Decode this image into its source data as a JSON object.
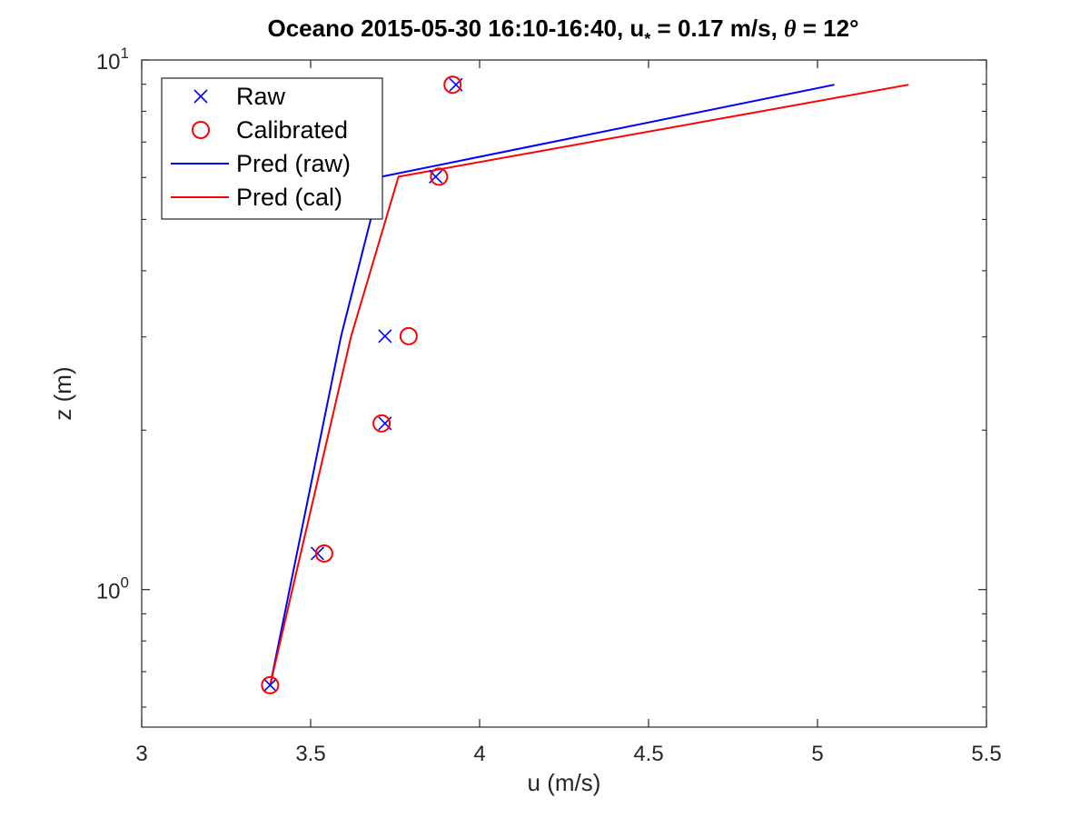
{
  "chart_data": {
    "type": "line",
    "title": {
      "main": "Oceano 2015-05-30 16:10-16:40, u",
      "ustar_sub": "*",
      "middle": " = 0.17 m/s, ",
      "theta_symbol": "θ",
      "end": " = 12°"
    },
    "xlabel": "u (m/s)",
    "ylabel": "z (m)",
    "xlim": [
      3,
      5.5
    ],
    "ylim": [
      0.55,
      10
    ],
    "yscale": "log",
    "xticks": [
      3,
      3.5,
      4,
      4.5,
      5,
      5.5
    ],
    "xtick_labels": [
      "3",
      "3.5",
      "4",
      "4.5",
      "5",
      "5.5"
    ],
    "yticks": [
      {
        "value": 1,
        "base": "10",
        "exp": "0"
      },
      {
        "value": 10,
        "base": "10",
        "exp": "1"
      }
    ],
    "minor_yticks": [
      0.6,
      0.7,
      0.8,
      0.9,
      2,
      3,
      4,
      5,
      6,
      7,
      8,
      9
    ],
    "legend_position": "top-left",
    "series": [
      {
        "name": "Raw",
        "kind": "marker",
        "marker": "x",
        "color": "#0000ff",
        "points": [
          [
            3.38,
            0.66
          ],
          [
            3.52,
            1.17
          ],
          [
            3.72,
            2.06
          ],
          [
            3.72,
            3.01
          ],
          [
            3.87,
            6.02
          ],
          [
            3.93,
            8.98
          ]
        ]
      },
      {
        "name": "Calibrated",
        "kind": "marker",
        "marker": "o",
        "color": "#ff0000",
        "points": [
          [
            3.38,
            0.66
          ],
          [
            3.54,
            1.17
          ],
          [
            3.71,
            2.06
          ],
          [
            3.79,
            3.01
          ],
          [
            3.88,
            6.02
          ],
          [
            3.92,
            8.98
          ]
        ]
      },
      {
        "name": "Pred (raw)",
        "kind": "line",
        "color": "#0000ff",
        "points": [
          [
            3.38,
            0.66
          ],
          [
            3.59,
            3.01
          ],
          [
            3.71,
            6.02
          ],
          [
            5.05,
            8.98
          ]
        ]
      },
      {
        "name": "Pred (cal)",
        "kind": "line",
        "color": "#ff0000",
        "points": [
          [
            3.38,
            0.66
          ],
          [
            3.62,
            3.01
          ],
          [
            3.76,
            6.02
          ],
          [
            5.27,
            8.98
          ]
        ]
      }
    ]
  }
}
